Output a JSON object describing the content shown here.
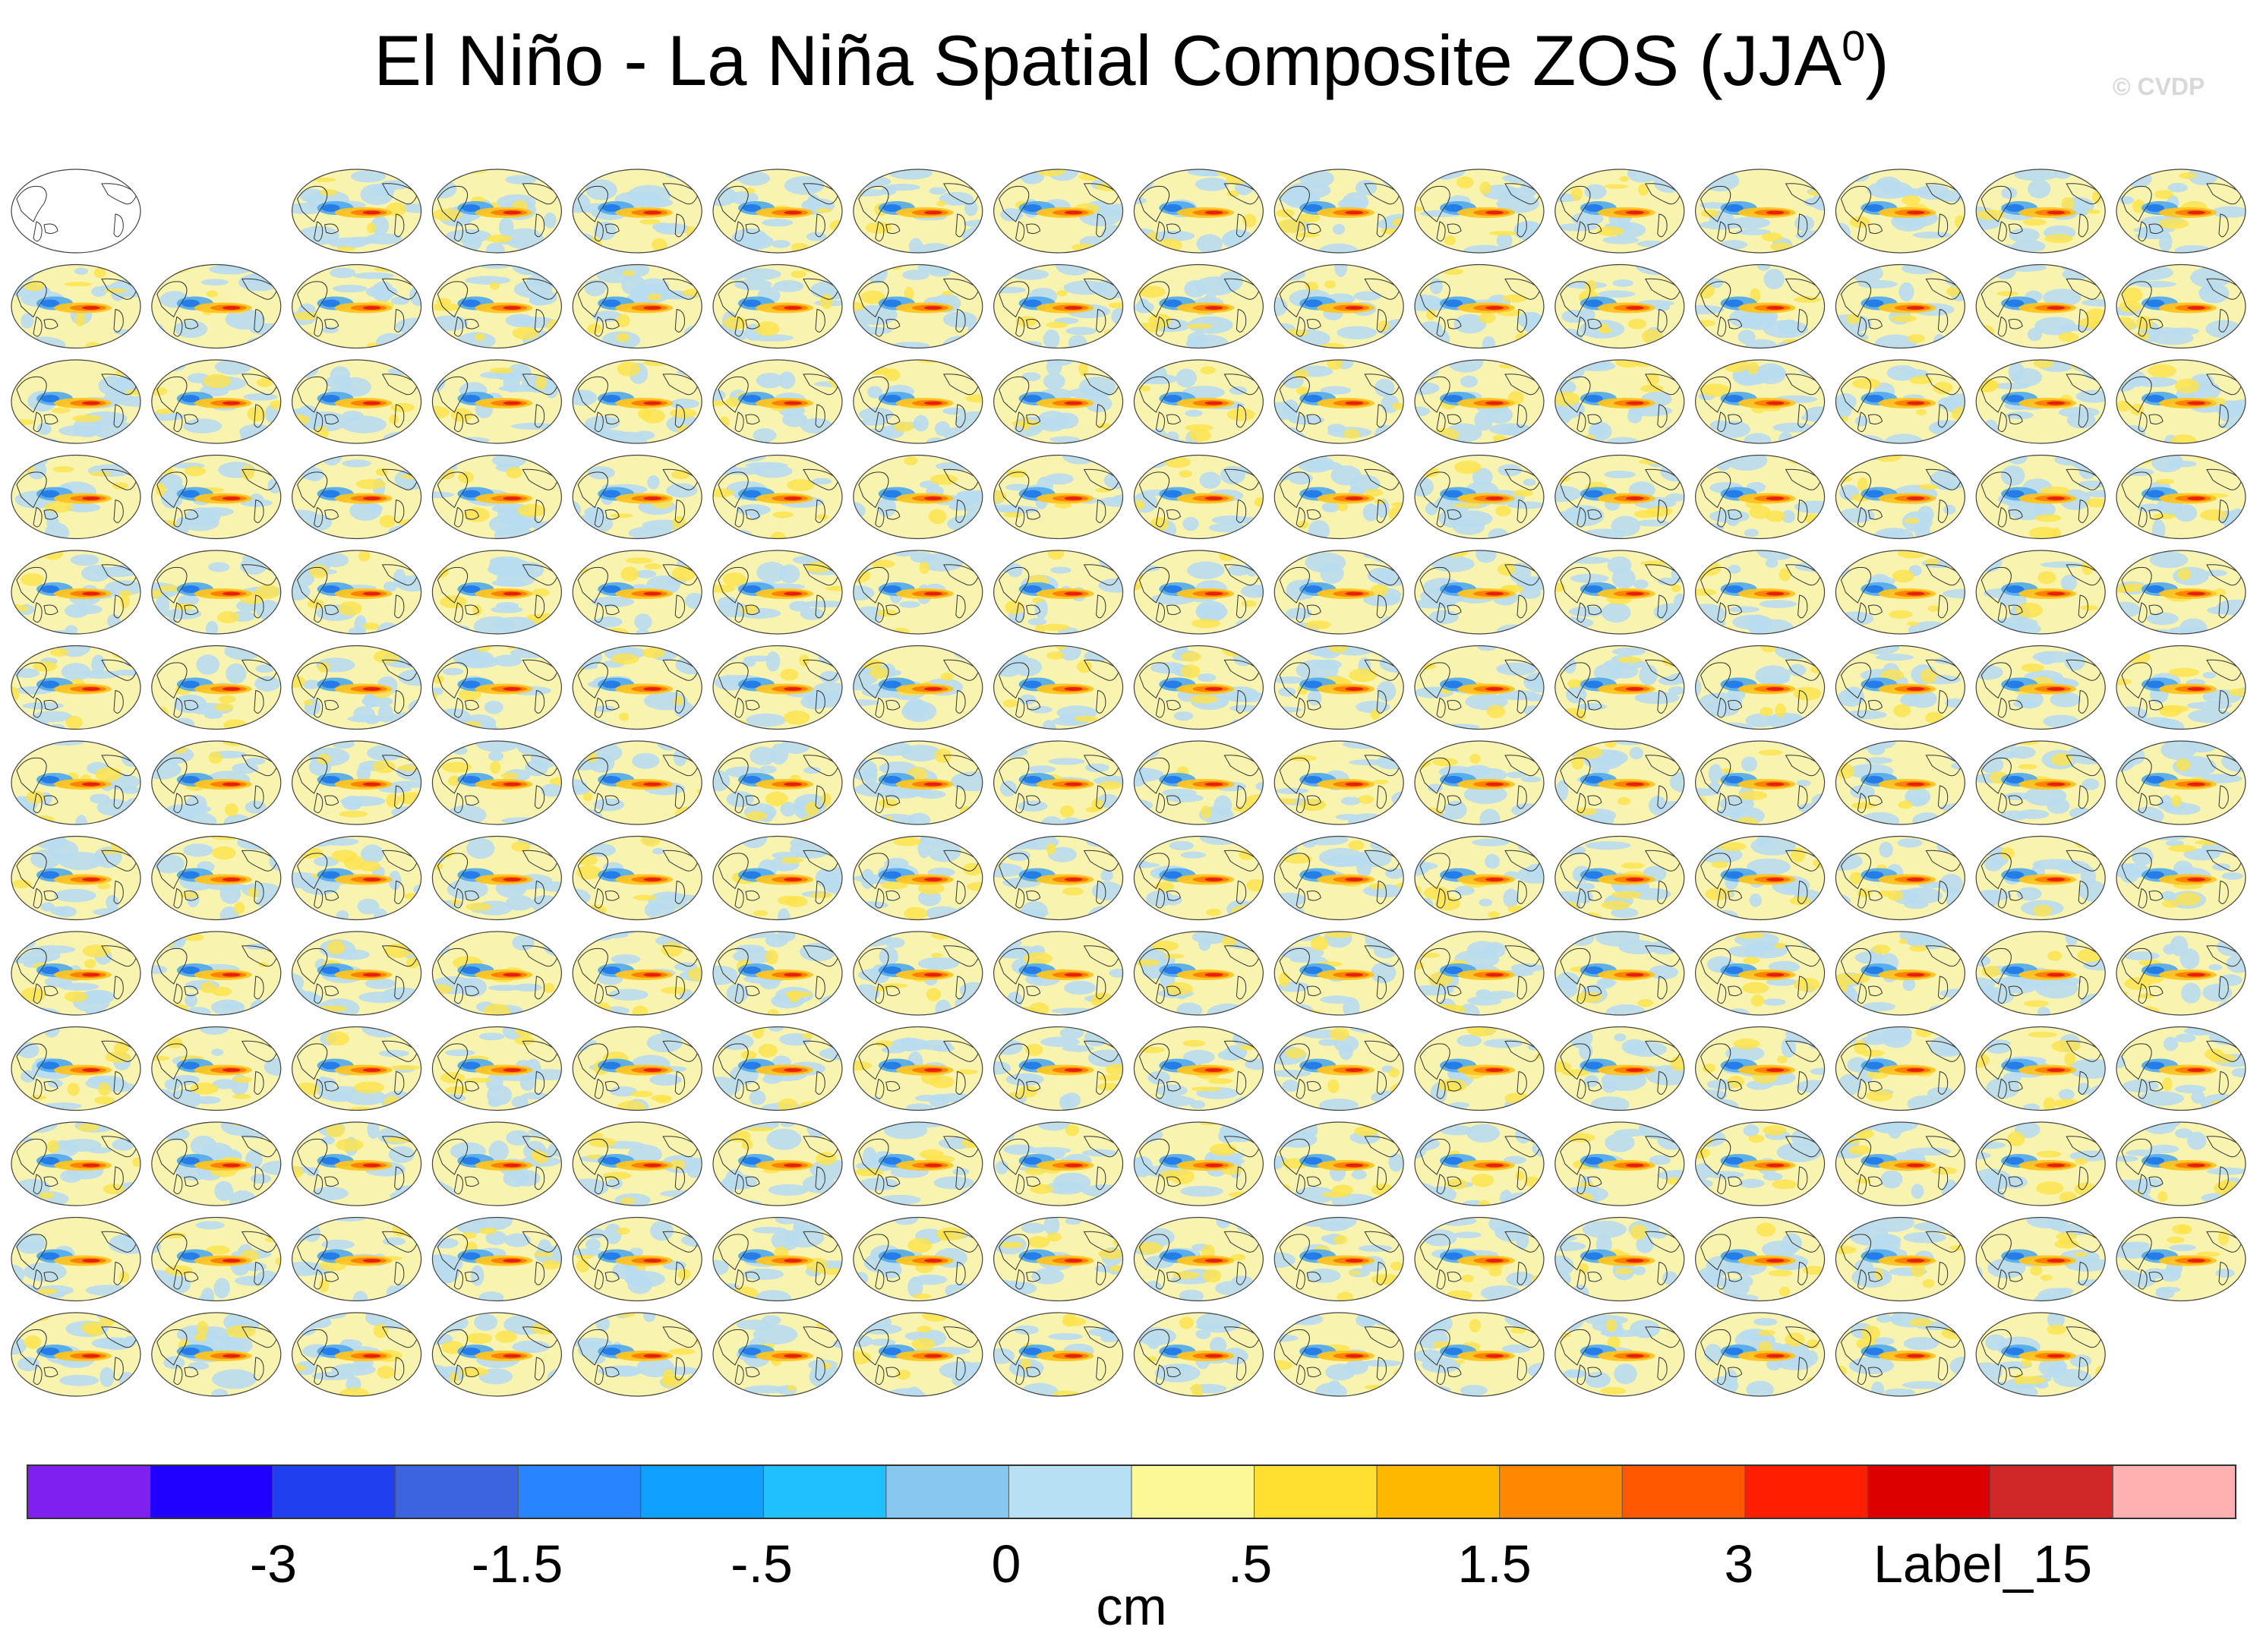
{
  "title": {
    "main": "El Niño - La Niña Spatial Composite ZOS (JJA",
    "superscript": "0",
    "close": ")"
  },
  "watermark": "© CVDP",
  "chart_data": {
    "type": "heatmap",
    "description_kind": "panel grid of global ocean maps",
    "grid": {
      "rows": 13,
      "cols": 16,
      "panel_count": 206,
      "last_row_count": 15,
      "first_row_observations": 1
    },
    "colorbar": {
      "unit_label": "cm",
      "colors": [
        "#8020f0",
        "#2000ff",
        "#2040f0",
        "#3c64e0",
        "#2884ff",
        "#10a0ff",
        "#20c0ff",
        "#88c8f0",
        "#b8e0f4",
        "#fcf898",
        "#ffe030",
        "#ffb800",
        "#ff8800",
        "#ff5800",
        "#ff1e00",
        "#dc0000",
        "#d02828",
        "#ffb0b0"
      ],
      "tick_labels": [
        "-3",
        "-1.5",
        "-.5",
        "0",
        ".5",
        "1.5",
        "3",
        "Label_15"
      ]
    }
  }
}
